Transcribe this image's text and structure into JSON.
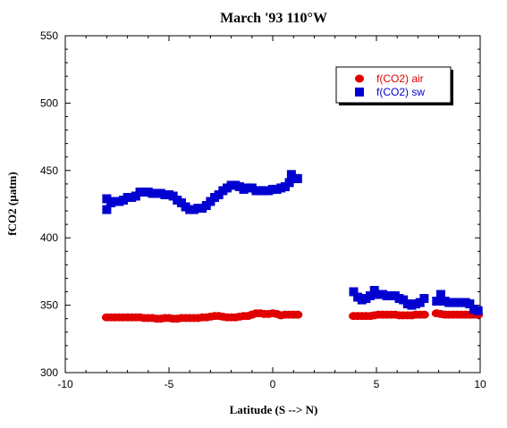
{
  "chart_data": {
    "type": "scatter",
    "title": "March '93 110°W",
    "xlabel": "Latitude (S --> N)",
    "ylabel": "fCO2 (µatm)",
    "xlim": [
      -10,
      10
    ],
    "ylim": [
      300,
      550
    ],
    "xticks": [
      -10,
      -5,
      0,
      5,
      10
    ],
    "yticks": [
      300,
      350,
      400,
      450,
      500,
      550
    ],
    "grid": false,
    "legend_position": "top-right",
    "series": [
      {
        "name": "f(CO2) air",
        "color": "#e00000",
        "marker": "circle",
        "points": [
          [
            -8.0,
            341
          ],
          [
            -7.8,
            341
          ],
          [
            -7.6,
            341
          ],
          [
            -7.4,
            341
          ],
          [
            -7.2,
            341
          ],
          [
            -7.0,
            341
          ],
          [
            -6.8,
            341
          ],
          [
            -6.6,
            341
          ],
          [
            -6.4,
            341
          ],
          [
            -6.2,
            340.5
          ],
          [
            -6.0,
            340.5
          ],
          [
            -5.8,
            340.5
          ],
          [
            -5.6,
            340
          ],
          [
            -5.4,
            340
          ],
          [
            -5.2,
            340.5
          ],
          [
            -5.0,
            340.5
          ],
          [
            -4.8,
            340
          ],
          [
            -4.6,
            340
          ],
          [
            -4.4,
            340.5
          ],
          [
            -4.2,
            340.5
          ],
          [
            -4.0,
            340.5
          ],
          [
            -3.8,
            340.5
          ],
          [
            -3.6,
            340.5
          ],
          [
            -3.4,
            341
          ],
          [
            -3.2,
            341
          ],
          [
            -3.0,
            341.5
          ],
          [
            -2.8,
            342
          ],
          [
            -2.6,
            342
          ],
          [
            -2.4,
            341.5
          ],
          [
            -2.2,
            341
          ],
          [
            -2.0,
            341
          ],
          [
            -1.8,
            341
          ],
          [
            -1.6,
            341.5
          ],
          [
            -1.4,
            342
          ],
          [
            -1.2,
            342
          ],
          [
            -1.0,
            343
          ],
          [
            -0.8,
            344
          ],
          [
            -0.6,
            344
          ],
          [
            -0.4,
            343.5
          ],
          [
            -0.2,
            343.5
          ],
          [
            0.0,
            344
          ],
          [
            0.2,
            343.5
          ],
          [
            0.4,
            342.5
          ],
          [
            0.6,
            343
          ],
          [
            0.8,
            343
          ],
          [
            1.0,
            343
          ],
          [
            1.2,
            343
          ],
          [
            3.9,
            342
          ],
          [
            4.1,
            342
          ],
          [
            4.3,
            342
          ],
          [
            4.5,
            342
          ],
          [
            4.7,
            342
          ],
          [
            4.9,
            342.5
          ],
          [
            5.1,
            343
          ],
          [
            5.3,
            343
          ],
          [
            5.5,
            343
          ],
          [
            5.7,
            343
          ],
          [
            5.9,
            343
          ],
          [
            6.1,
            342.5
          ],
          [
            6.3,
            342.5
          ],
          [
            6.5,
            342.5
          ],
          [
            6.7,
            342.5
          ],
          [
            6.9,
            343
          ],
          [
            7.1,
            343
          ],
          [
            7.3,
            343
          ],
          [
            7.9,
            344
          ],
          [
            8.1,
            343.5
          ],
          [
            8.3,
            343
          ],
          [
            8.5,
            343
          ],
          [
            8.7,
            343
          ],
          [
            8.9,
            343
          ],
          [
            9.1,
            343
          ],
          [
            9.3,
            343
          ],
          [
            9.5,
            343
          ],
          [
            9.7,
            343
          ],
          [
            9.9,
            343
          ]
        ]
      },
      {
        "name": "f(CO2) sw",
        "color": "#0000d0",
        "marker": "square",
        "points": [
          [
            -8.0,
            421
          ],
          [
            -8.0,
            429
          ],
          [
            -7.8,
            426
          ],
          [
            -7.6,
            427
          ],
          [
            -7.4,
            427
          ],
          [
            -7.2,
            428
          ],
          [
            -7.0,
            430
          ],
          [
            -6.8,
            430
          ],
          [
            -6.6,
            431
          ],
          [
            -6.4,
            434
          ],
          [
            -6.2,
            434
          ],
          [
            -6.0,
            434
          ],
          [
            -5.8,
            433
          ],
          [
            -5.6,
            433
          ],
          [
            -5.4,
            433
          ],
          [
            -5.2,
            432
          ],
          [
            -5.0,
            432
          ],
          [
            -4.8,
            431
          ],
          [
            -4.6,
            428
          ],
          [
            -4.4,
            426
          ],
          [
            -4.2,
            423
          ],
          [
            -4.0,
            421
          ],
          [
            -3.8,
            421
          ],
          [
            -3.6,
            422
          ],
          [
            -3.4,
            422
          ],
          [
            -3.2,
            424
          ],
          [
            -3.0,
            427
          ],
          [
            -2.8,
            430
          ],
          [
            -2.6,
            432
          ],
          [
            -2.4,
            435
          ],
          [
            -2.2,
            437
          ],
          [
            -2.0,
            439
          ],
          [
            -1.8,
            439
          ],
          [
            -1.6,
            438
          ],
          [
            -1.4,
            436
          ],
          [
            -1.2,
            437
          ],
          [
            -1.0,
            437
          ],
          [
            -0.8,
            435
          ],
          [
            -0.6,
            435
          ],
          [
            -0.4,
            435
          ],
          [
            -0.2,
            435
          ],
          [
            0.0,
            436
          ],
          [
            0.2,
            436
          ],
          [
            0.4,
            437
          ],
          [
            0.6,
            438
          ],
          [
            0.8,
            441
          ],
          [
            0.9,
            447
          ],
          [
            1.1,
            444
          ],
          [
            1.2,
            444
          ],
          [
            3.9,
            360
          ],
          [
            4.1,
            356
          ],
          [
            4.3,
            354
          ],
          [
            4.5,
            355
          ],
          [
            4.7,
            357
          ],
          [
            4.9,
            361
          ],
          [
            5.1,
            358
          ],
          [
            5.3,
            358
          ],
          [
            5.5,
            357
          ],
          [
            5.7,
            357
          ],
          [
            5.9,
            357
          ],
          [
            6.1,
            355
          ],
          [
            6.3,
            354
          ],
          [
            6.5,
            351
          ],
          [
            6.7,
            350
          ],
          [
            6.9,
            351
          ],
          [
            7.1,
            352
          ],
          [
            7.3,
            355
          ],
          [
            7.9,
            353
          ],
          [
            8.1,
            358
          ],
          [
            8.3,
            353
          ],
          [
            8.5,
            352
          ],
          [
            8.7,
            352
          ],
          [
            8.9,
            352
          ],
          [
            9.1,
            352
          ],
          [
            9.3,
            352
          ],
          [
            9.5,
            351
          ],
          [
            9.7,
            347
          ],
          [
            9.9,
            346
          ]
        ]
      }
    ]
  }
}
